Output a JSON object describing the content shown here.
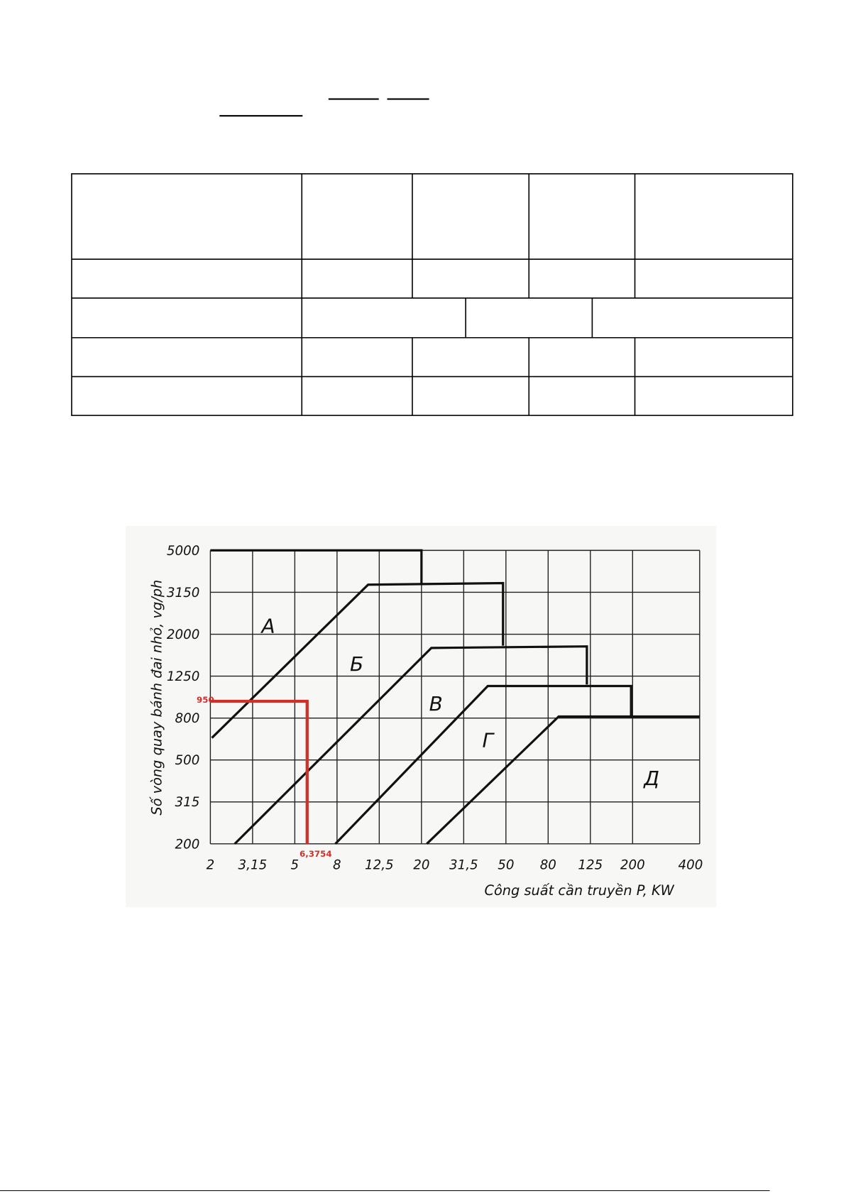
{
  "figure": {
    "y_axis_title": "Số vòng quay bánh đai nhỏ, vg/ph",
    "x_axis_title": "Công suất cần truyền P, KW",
    "y_tick_labels": [
      5000,
      3150,
      2000,
      1250,
      800,
      500,
      315,
      200
    ],
    "x_tick_labels": [
      2,
      "3,15",
      5,
      8,
      "12,5",
      20,
      "31,5",
      50,
      80,
      125,
      200,
      400
    ],
    "region_labels": [
      "A",
      "Б",
      "В",
      "Г",
      "Д"
    ],
    "annotations": [
      "950",
      "6,3754"
    ]
  }
}
